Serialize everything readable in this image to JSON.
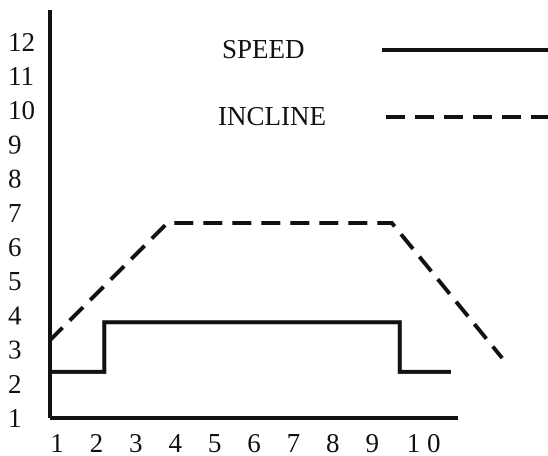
{
  "chart_data": {
    "type": "line",
    "title": "",
    "xlabel": "",
    "ylabel": "",
    "x_ticks": [
      "1",
      "2",
      "3",
      "4",
      "5",
      "6",
      "7",
      "8",
      "9",
      "1 0"
    ],
    "y_ticks": [
      "1",
      "2",
      "3",
      "4",
      "5",
      "6",
      "7",
      "8",
      "9",
      "10",
      "11",
      "12"
    ],
    "xlim": [
      1,
      10
    ],
    "ylim": [
      1,
      12
    ],
    "grid": false,
    "legend_position": "top-right",
    "series": [
      {
        "name": "SPEED",
        "style": "solid",
        "color": "#111111",
        "points": [
          [
            0.8,
            2.35
          ],
          [
            2.2,
            2.35
          ],
          [
            2.2,
            3.8
          ],
          [
            9.7,
            3.8
          ],
          [
            9.7,
            2.35
          ],
          [
            11.0,
            2.35
          ]
        ]
      },
      {
        "name": "INCLINE",
        "style": "dashed",
        "color": "#111111",
        "points": [
          [
            0.8,
            3.25
          ],
          [
            3.8,
            6.7
          ],
          [
            9.5,
            6.7
          ],
          [
            12.3,
            2.75
          ]
        ]
      }
    ]
  }
}
